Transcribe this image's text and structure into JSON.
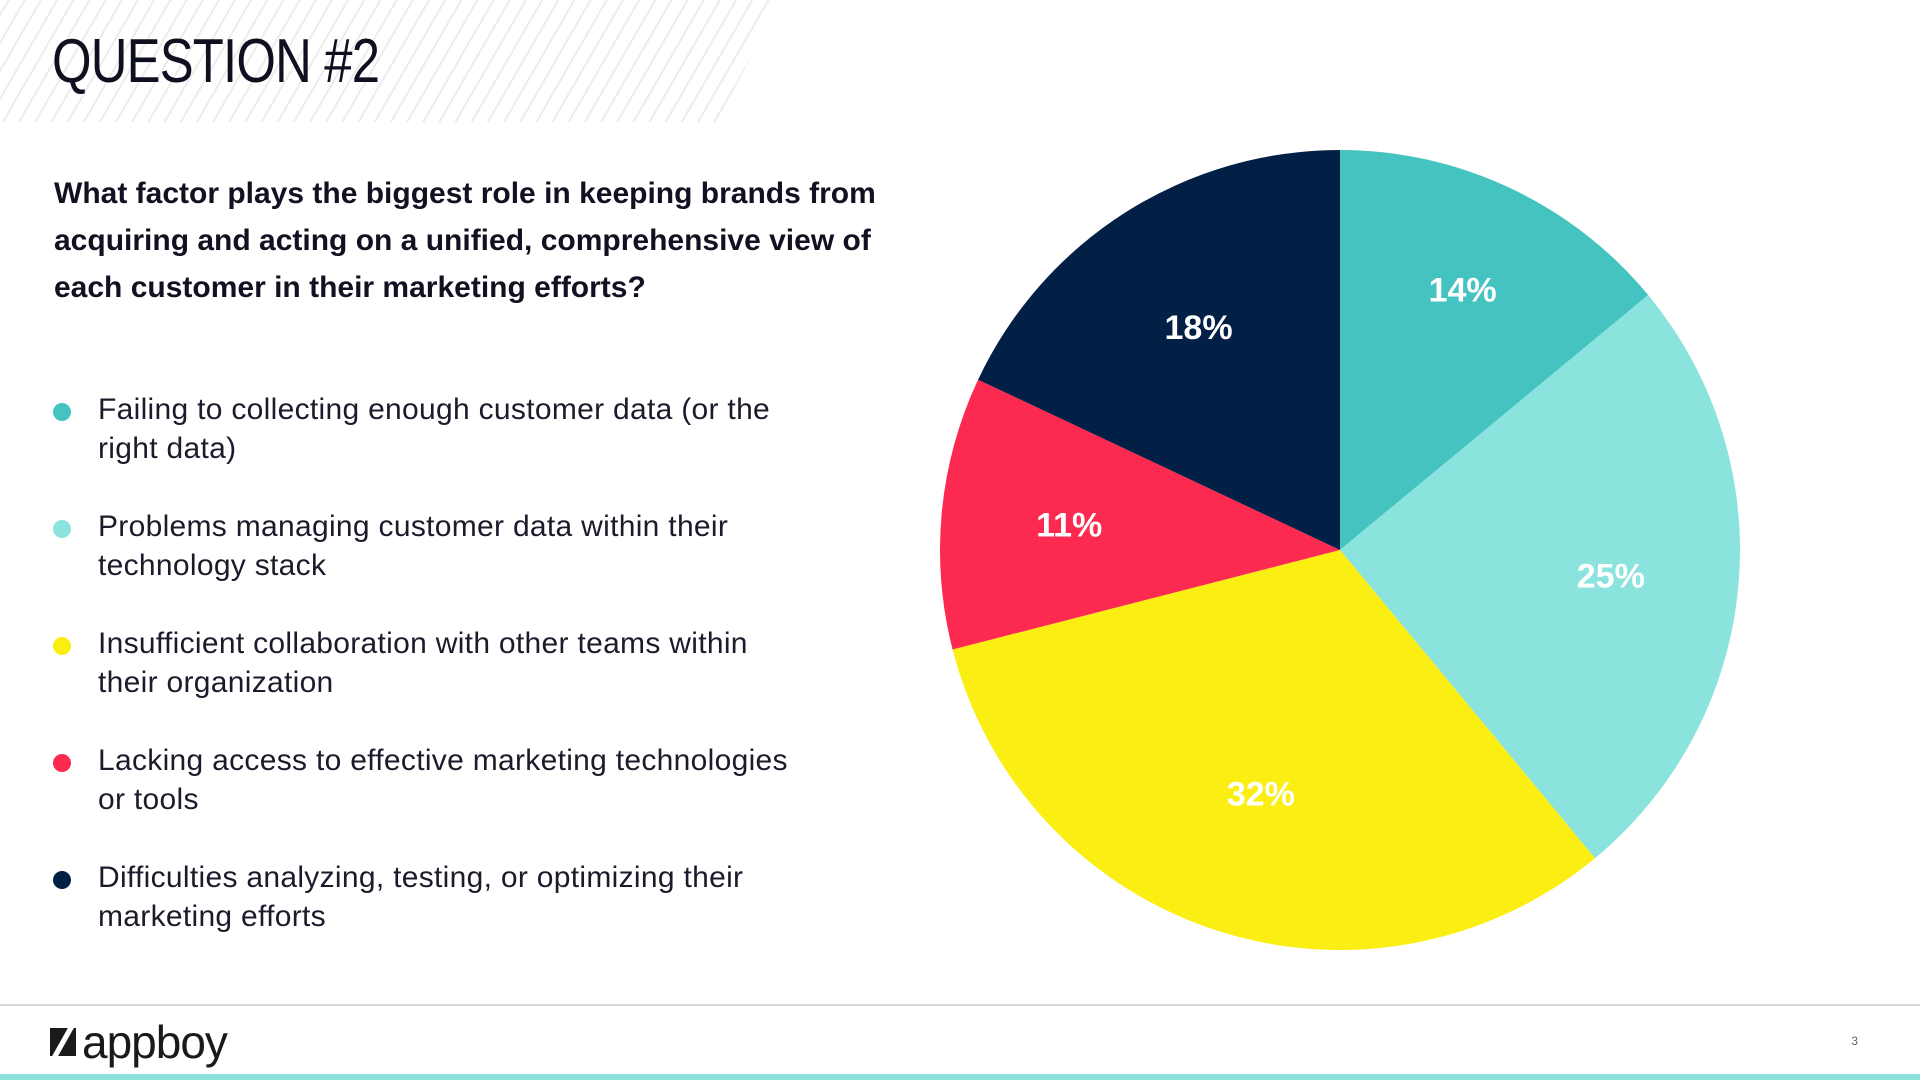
{
  "slide": {
    "title": "QUESTION #2",
    "question": "What factor plays the biggest role in keeping brands from acquiring and acting on a unified, comprehensive view of each customer in their marketing efforts?",
    "page_number": "3",
    "logo_text": "appboy"
  },
  "legend": [
    {
      "text": "Failing to collecting enough customer data (or the right data)",
      "color": "#45c3c1"
    },
    {
      "text": "Problems managing customer data within their technology stack",
      "color": "#8be3dd"
    },
    {
      "text": "Insufficient collaboration with other teams within their organization",
      "color": "#fbee13"
    },
    {
      "text": "Lacking access to effective marketing technologies or tools",
      "color": "#fc2a51"
    },
    {
      "text": "Difficulties analyzing, testing, or optimizing their marketing efforts",
      "color": "#021f45"
    }
  ],
  "chart_data": {
    "type": "pie",
    "title": "",
    "start": "12 o'clock, clockwise",
    "slices": [
      {
        "label": "Failing to collecting enough customer data (or the right data)",
        "value": 14,
        "display": "14%",
        "color": "#45c3c1"
      },
      {
        "label": "Problems managing customer data within their technology stack",
        "value": 25,
        "display": "25%",
        "color": "#8be3dd"
      },
      {
        "label": "Insufficient collaboration with other teams within their organization",
        "value": 32,
        "display": "32%",
        "color": "#fbee13"
      },
      {
        "label": "Lacking access to effective marketing technologies or tools",
        "value": 11,
        "display": "11%",
        "color": "#fc2a51"
      },
      {
        "label": "Difficulties analyzing, testing, or optimizing their marketing efforts",
        "value": 18,
        "display": "18%",
        "color": "#021f45"
      }
    ]
  },
  "colors": {
    "footer_accent": "#8ee0db",
    "text": "#111122"
  }
}
